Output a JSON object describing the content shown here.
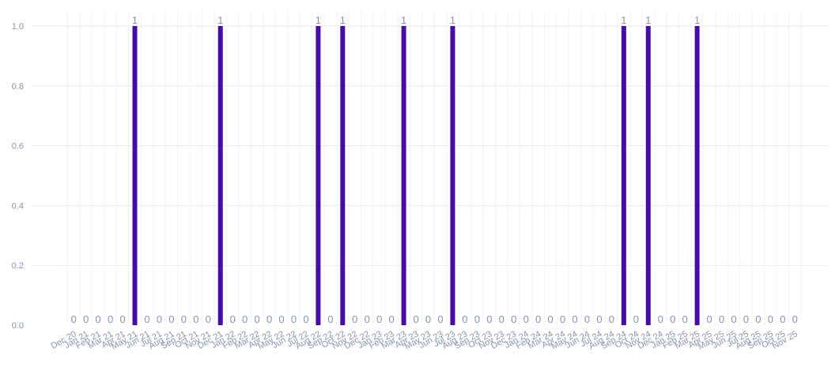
{
  "chart_data": {
    "type": "bar",
    "title": "",
    "xlabel": "",
    "ylabel": "",
    "legend": false,
    "grid": true,
    "value_labels": true,
    "ylim": [
      0,
      1.05
    ],
    "yticks": [
      0.0,
      0.2,
      0.4,
      0.6,
      0.8,
      1.0
    ],
    "categories": [
      "Dec 20",
      "Jan 21",
      "Feb 21",
      "Mar 21",
      "Apr 21",
      "May 21",
      "Jun 21",
      "Jul 21",
      "Aug 21",
      "Sep 21",
      "Oct 21",
      "Nov 21",
      "Dec 21",
      "Jan 22",
      "Feb 22",
      "Mar 22",
      "Apr 22",
      "May 22",
      "Jun 22",
      "Jul 22",
      "Aug 22",
      "Sep 22",
      "Oct 22",
      "Nov 22",
      "Dec 22",
      "Jan 23",
      "Feb 23",
      "Mar 23",
      "Apr 23",
      "May 23",
      "Jun 23",
      "Jul 23",
      "Aug 23",
      "Sep 23",
      "Oct 23",
      "Nov 23",
      "Dec 23",
      "Jan 24",
      "Feb 24",
      "Mar 24",
      "Apr 24",
      "May 24",
      "Jun 24",
      "Jul 24",
      "Aug 24",
      "Sep 24",
      "Oct 24",
      "Nov 24",
      "Dec 24",
      "Jan 25",
      "Feb 25",
      "Mar 25",
      "Apr 25",
      "May 25",
      "Jun 25",
      "Jul 25",
      "Aug 25",
      "Sep 25",
      "Oct 25",
      "Nov 25"
    ],
    "values": [
      0,
      0,
      0,
      0,
      0,
      1,
      0,
      0,
      0,
      0,
      0,
      0,
      1,
      0,
      0,
      0,
      0,
      0,
      0,
      0,
      1,
      0,
      1,
      0,
      0,
      0,
      0,
      1,
      0,
      0,
      0,
      1,
      0,
      0,
      0,
      0,
      0,
      0,
      0,
      0,
      0,
      0,
      0,
      0,
      0,
      1,
      0,
      1,
      0,
      0,
      0,
      1,
      0,
      0,
      0,
      0,
      0,
      0,
      0,
      0
    ],
    "colors": {
      "bar": "#470BA8",
      "tick_label": "#8C92B4",
      "value_label": "#8C92B4",
      "grid_horizontal": "#EAEBF4",
      "grid_vertical": "#F2F3FA",
      "background": "#FFFFFF"
    },
    "layout_hints": {
      "x_tick_rotation_deg": -30,
      "legend_position": "none",
      "bar_value_label_position": "top"
    }
  }
}
